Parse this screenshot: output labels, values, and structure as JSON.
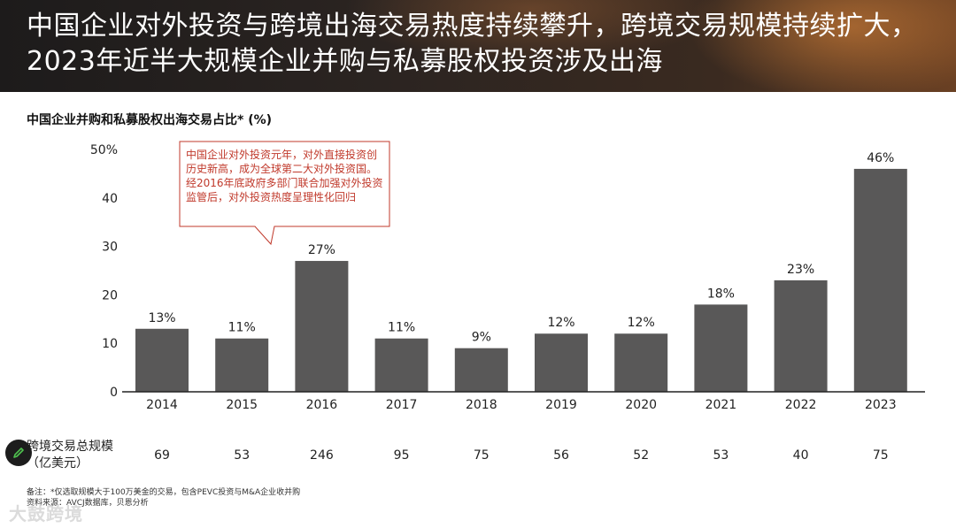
{
  "page": {
    "title": "中国企业对外投资与跨境出海交易热度持续攀升，跨境交易规模持续扩大，2023年近半大规模企业并购与私募股权投资涉及出海"
  },
  "chart_data": {
    "type": "bar",
    "title": "中国企业并购和私募股权出海交易占比* (%)",
    "categories": [
      "2014",
      "2015",
      "2016",
      "2017",
      "2018",
      "2019",
      "2020",
      "2021",
      "2022",
      "2023"
    ],
    "values": [
      13,
      11,
      27,
      11,
      9,
      12,
      12,
      18,
      23,
      46
    ],
    "data_labels": [
      "13%",
      "11%",
      "27%",
      "11%",
      "9%",
      "12%",
      "12%",
      "18%",
      "23%",
      "46%"
    ],
    "y_ticks": [
      "0",
      "10",
      "20",
      "30",
      "40",
      "50%"
    ],
    "ylim": [
      0,
      50
    ],
    "bar_color": "#595858",
    "secondary_row": {
      "label": "跨境交易总规模（亿美元）",
      "values": [
        "69",
        "53",
        "246",
        "95",
        "75",
        "56",
        "52",
        "53",
        "40",
        "75"
      ]
    },
    "annotation": "中国企业对外投资元年，对外直接投资创历史新高，成为全球第二大对外投资国。经2016年底政府多部门联合加强对外投资监管后，对外投资热度呈理性化回归",
    "annotation_color": "#c0392b"
  },
  "footnote": {
    "line1": "备注：*仅选取规模大于100万美金的交易，包含PEVC投资与M&A企业收并购",
    "line2": "资料来源：AVCJ数据库，贝恩分析"
  },
  "watermark": "大鼓跨境"
}
